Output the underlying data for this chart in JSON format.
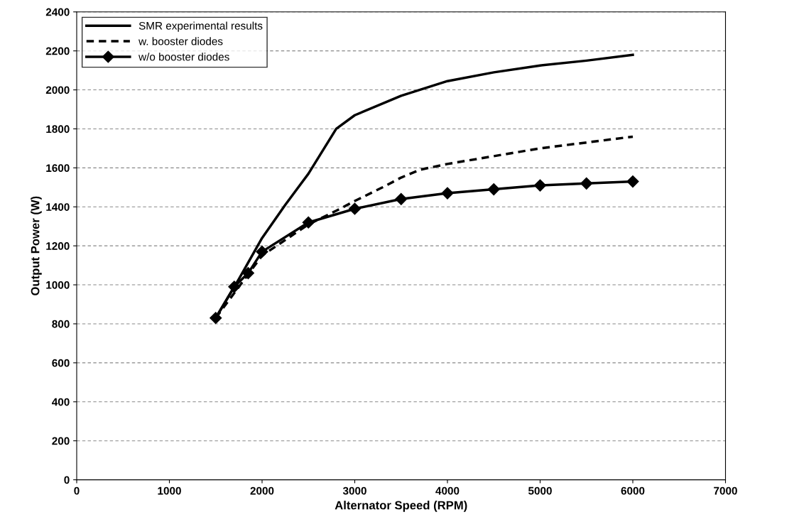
{
  "chart_data": {
    "type": "line",
    "xlabel": "Alternator Speed (RPM)",
    "ylabel": "Output Power (W)",
    "xlim": [
      0,
      7000
    ],
    "xticks": [
      0,
      1000,
      2000,
      3000,
      4000,
      5000,
      6000,
      7000
    ],
    "ylim": [
      0,
      2400
    ],
    "yticks": [
      0,
      200,
      400,
      600,
      800,
      1000,
      1200,
      1400,
      1600,
      1800,
      2000,
      2200,
      2400
    ],
    "grid": "y",
    "legend": "top left",
    "series": [
      {
        "name": "SMR experimental results",
        "color": "#000000",
        "line_style": "solid",
        "marker": "none",
        "x": [
          1500,
          1750,
          2000,
          2250,
          2500,
          2800,
          3000,
          3500,
          4000,
          4500,
          5000,
          5500,
          6000
        ],
        "values": [
          830,
          1030,
          1240,
          1410,
          1570,
          1800,
          1870,
          1970,
          2045,
          2090,
          2125,
          2150,
          2180
        ]
      },
      {
        "name": "w. booster diodes",
        "color": "#000000",
        "line_style": "dashed",
        "marker": "none",
        "x": [
          1500,
          2000,
          2500,
          2800,
          3000,
          3300,
          3500,
          3700,
          4000,
          4500,
          5000,
          5500,
          6000
        ],
        "values": [
          830,
          1150,
          1310,
          1380,
          1430,
          1500,
          1550,
          1590,
          1620,
          1660,
          1700,
          1730,
          1760
        ]
      },
      {
        "name": "w/o booster diodes",
        "color": "#000000",
        "line_style": "solid",
        "marker": "diamond",
        "x": [
          1500,
          1700,
          1850,
          2000,
          2500,
          3000,
          3500,
          4000,
          4500,
          5000,
          5500,
          6000
        ],
        "values": [
          830,
          990,
          1060,
          1170,
          1320,
          1390,
          1440,
          1470,
          1490,
          1510,
          1520,
          1530
        ]
      }
    ]
  }
}
